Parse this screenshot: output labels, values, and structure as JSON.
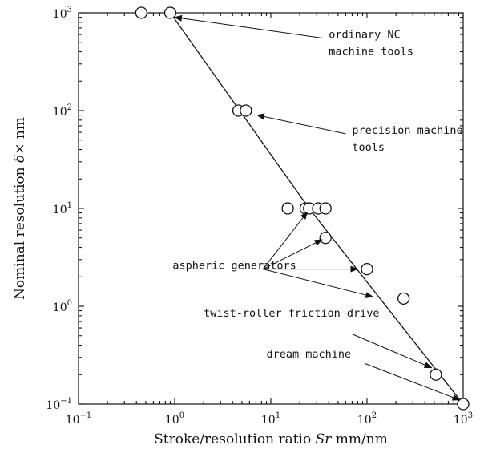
{
  "chart_data": {
    "type": "scatter",
    "xscale": "log",
    "yscale": "log",
    "xlim": [
      0.1,
      1000
    ],
    "ylim": [
      0.1,
      1000
    ],
    "grid": false,
    "xlabel": "Stroke/resolution ratio Sr mm/nm",
    "ylabel": "Nominal resolution δ× nm",
    "xlabel_parts": {
      "prefix": "Stroke/resolution ratio ",
      "symbol": "Sr",
      "suffix": " mm/nm"
    },
    "ylabel_parts": {
      "prefix": "Nominal resolution ",
      "symbol": "δ×",
      "suffix": " nm"
    },
    "x_ticks": [
      {
        "value": 0.1,
        "base": "10",
        "exp": "−1"
      },
      {
        "value": 1,
        "base": "10",
        "exp": "0"
      },
      {
        "value": 10,
        "base": "10",
        "exp": "1"
      },
      {
        "value": 100,
        "base": "10",
        "exp": "2"
      },
      {
        "value": 1000,
        "base": "10",
        "exp": "3"
      }
    ],
    "y_ticks": [
      {
        "value": 0.1,
        "base": "10",
        "exp": "−1"
      },
      {
        "value": 1,
        "base": "10",
        "exp": "0"
      },
      {
        "value": 10,
        "base": "10",
        "exp": "1"
      },
      {
        "value": 100,
        "base": "10",
        "exp": "2"
      },
      {
        "value": 1000,
        "base": "10",
        "exp": "3"
      }
    ],
    "points": [
      {
        "x": 0.45,
        "y": 1000
      },
      {
        "x": 0.9,
        "y": 1000
      },
      {
        "x": 4.6,
        "y": 100
      },
      {
        "x": 5.5,
        "y": 100
      },
      {
        "x": 15,
        "y": 10
      },
      {
        "x": 23,
        "y": 10
      },
      {
        "x": 25,
        "y": 10
      },
      {
        "x": 31,
        "y": 10
      },
      {
        "x": 37,
        "y": 10
      },
      {
        "x": 37,
        "y": 5
      },
      {
        "x": 100,
        "y": 2.4
      },
      {
        "x": 240,
        "y": 1.2
      },
      {
        "x": 520,
        "y": 0.2
      },
      {
        "x": 1000,
        "y": 0.1
      }
    ],
    "trend_line": [
      {
        "x": 0.9,
        "y": 1000
      },
      {
        "x": 25,
        "y": 10
      },
      {
        "x": 1000,
        "y": 0.1
      }
    ],
    "annotations": [
      {
        "lines": [
          "ordinary NC",
          "machine tools"
        ],
        "text_at": {
          "x": 40,
          "y": 550
        },
        "arrows": [
          {
            "from": {
              "x": 35,
              "y": 550
            },
            "to": {
              "x": 1.0,
              "y": 900
            }
          }
        ]
      },
      {
        "lines": [
          "precision machine",
          "tools"
        ],
        "text_at": {
          "x": 70,
          "y": 58
        },
        "arrows": [
          {
            "from": {
              "x": 60,
              "y": 58
            },
            "to": {
              "x": 7.2,
              "y": 90
            }
          }
        ]
      },
      {
        "lines": [
          "aspheric generators"
        ],
        "text_at": {
          "x": 0.95,
          "y": 2.4
        },
        "arrows": [
          {
            "from": {
              "x": 8.3,
              "y": 2.4
            },
            "to": {
              "x": 24,
              "y": 9.2
            }
          },
          {
            "from": {
              "x": 8.3,
              "y": 2.4
            },
            "to": {
              "x": 34,
              "y": 4.8
            }
          },
          {
            "from": {
              "x": 8.3,
              "y": 2.4
            },
            "to": {
              "x": 80,
              "y": 2.4
            }
          },
          {
            "from": {
              "x": 8.3,
              "y": 2.4
            },
            "to": {
              "x": 115,
              "y": 1.25
            }
          }
        ]
      },
      {
        "lines": [
          "twist-roller friction drive"
        ],
        "text_at": {
          "x": 2,
          "y": 0.78
        },
        "arrows": [
          {
            "from": {
              "x": 70,
              "y": 0.52
            },
            "to": {
              "x": 470,
              "y": 0.235
            }
          }
        ]
      },
      {
        "lines": [
          "dream machine"
        ],
        "text_at": {
          "x": 9,
          "y": 0.3
        },
        "arrows": [
          {
            "from": {
              "x": 95,
              "y": 0.26
            },
            "to": {
              "x": 920,
              "y": 0.11
            }
          }
        ]
      }
    ]
  }
}
